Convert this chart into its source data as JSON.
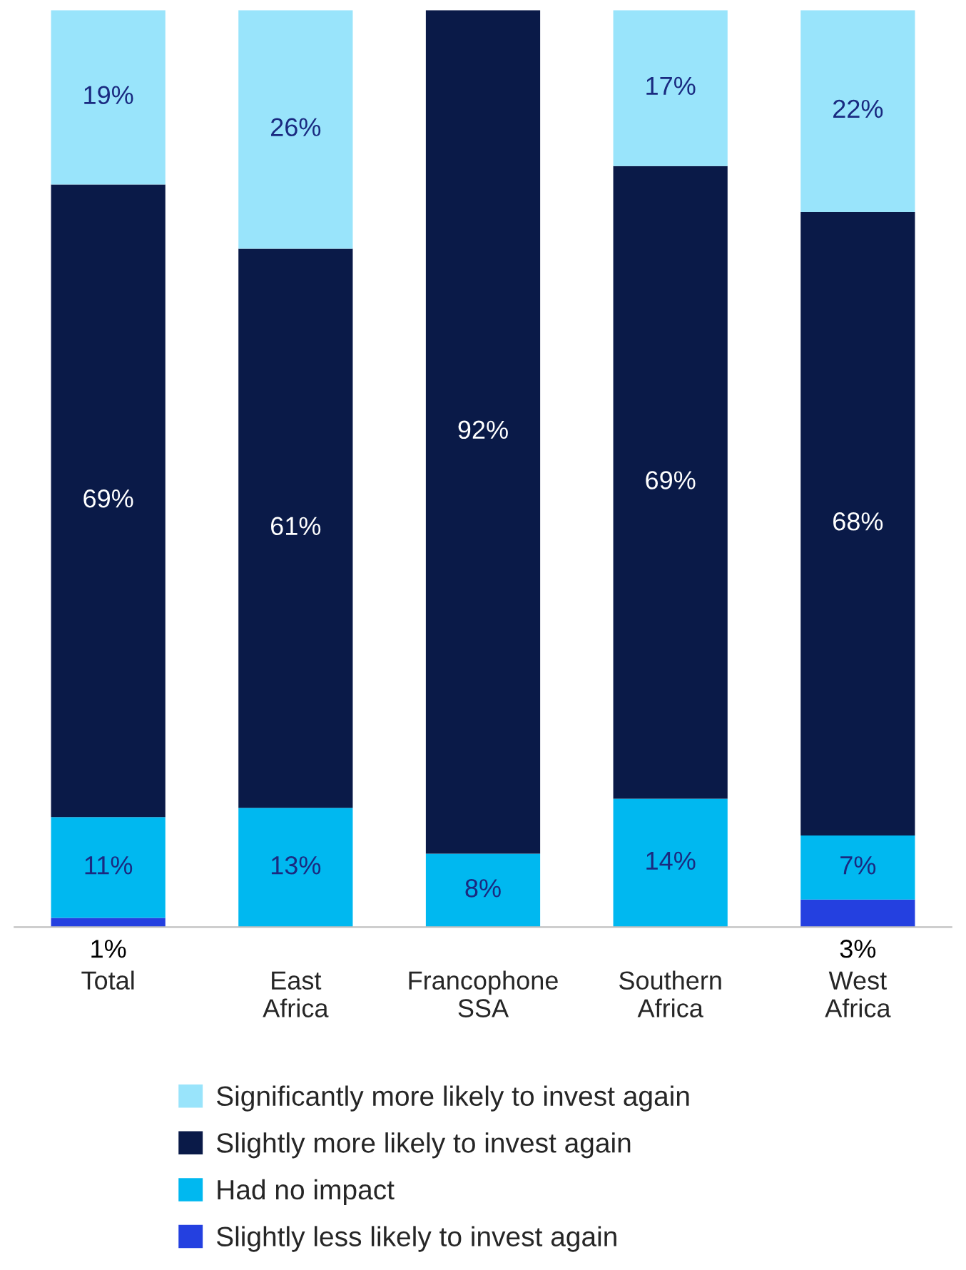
{
  "chart_data": {
    "type": "bar",
    "stacked": true,
    "legend": "bottom",
    "grid": false,
    "tick_labels": "x",
    "categories": [
      "Total",
      "East\nAfrica",
      "Francophone\nSSA",
      "Southern\nAfrica",
      "West\nAfrica"
    ],
    "series": [
      {
        "name": "Slightly less likely to invest again",
        "color": "#2440e0",
        "values": [
          1,
          null,
          null,
          null,
          3
        ],
        "value_labels": [
          "1%",
          null,
          null,
          null,
          "3%"
        ]
      },
      {
        "name": "Had no impact",
        "color": "#00b8f0",
        "values": [
          11,
          13,
          8,
          14,
          7
        ],
        "value_labels": [
          "11%",
          "13%",
          "8%",
          "14%",
          "7%"
        ]
      },
      {
        "name": "Slightly more likely to invest again",
        "color": "#0a1a48",
        "values": [
          69,
          61,
          92,
          69,
          68
        ],
        "value_labels": [
          "69%",
          "61%",
          "92%",
          "69%",
          "68%"
        ]
      },
      {
        "name": "Significantly more likely to invest again",
        "color": "#99e4fb",
        "values": [
          19,
          26,
          null,
          17,
          22
        ],
        "value_labels": [
          "19%",
          "26%",
          null,
          "17%",
          "22%"
        ]
      }
    ]
  }
}
